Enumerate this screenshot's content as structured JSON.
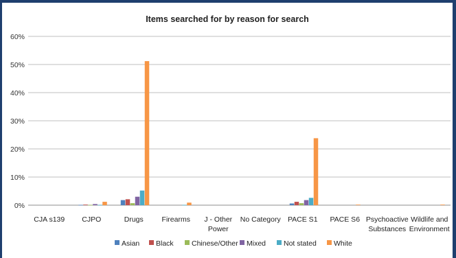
{
  "chart_data": {
    "type": "bar",
    "title": "Items searched for by reason for search",
    "xlabel": "",
    "ylabel": "",
    "ylim": [
      0,
      0.6
    ],
    "yticks": [
      "0%",
      "10%",
      "20%",
      "30%",
      "40%",
      "50%",
      "60%"
    ],
    "categories": [
      [
        "CJA s139"
      ],
      [
        "CJPO"
      ],
      [
        "Drugs"
      ],
      [
        "Firearms"
      ],
      [
        "J - Other",
        "Power"
      ],
      [
        "No Category"
      ],
      [
        "PACE S1"
      ],
      [
        "PACE S6"
      ],
      [
        "Psychoactive",
        "Substances"
      ],
      [
        "Wildlife and",
        "Environment"
      ]
    ],
    "series": [
      {
        "name": "Asian",
        "color": "#4f81bd",
        "values": [
          0,
          0.001,
          0.018,
          0,
          0,
          0,
          0.006,
          0,
          0,
          0
        ]
      },
      {
        "name": "Black",
        "color": "#c0504d",
        "values": [
          0,
          0.002,
          0.021,
          0,
          0,
          0,
          0.012,
          0,
          0,
          0
        ]
      },
      {
        "name": "Chinese/Other",
        "color": "#9bbb59",
        "values": [
          0,
          0.001,
          0.007,
          0,
          0,
          0,
          0.007,
          0,
          0,
          0
        ]
      },
      {
        "name": "Mixed",
        "color": "#8064a2",
        "values": [
          0,
          0.004,
          0.03,
          0,
          0,
          0,
          0.018,
          0,
          0,
          0
        ]
      },
      {
        "name": "Not stated",
        "color": "#4bacc6",
        "values": [
          0,
          0.001,
          0.052,
          0.001,
          0,
          0,
          0.026,
          0,
          0,
          0
        ]
      },
      {
        "name": "White",
        "color": "#f79646",
        "values": [
          0,
          0.012,
          0.512,
          0.009,
          0,
          0,
          0.238,
          0.002,
          0,
          0.002
        ]
      }
    ],
    "grid": true,
    "legend_position": "bottom"
  }
}
